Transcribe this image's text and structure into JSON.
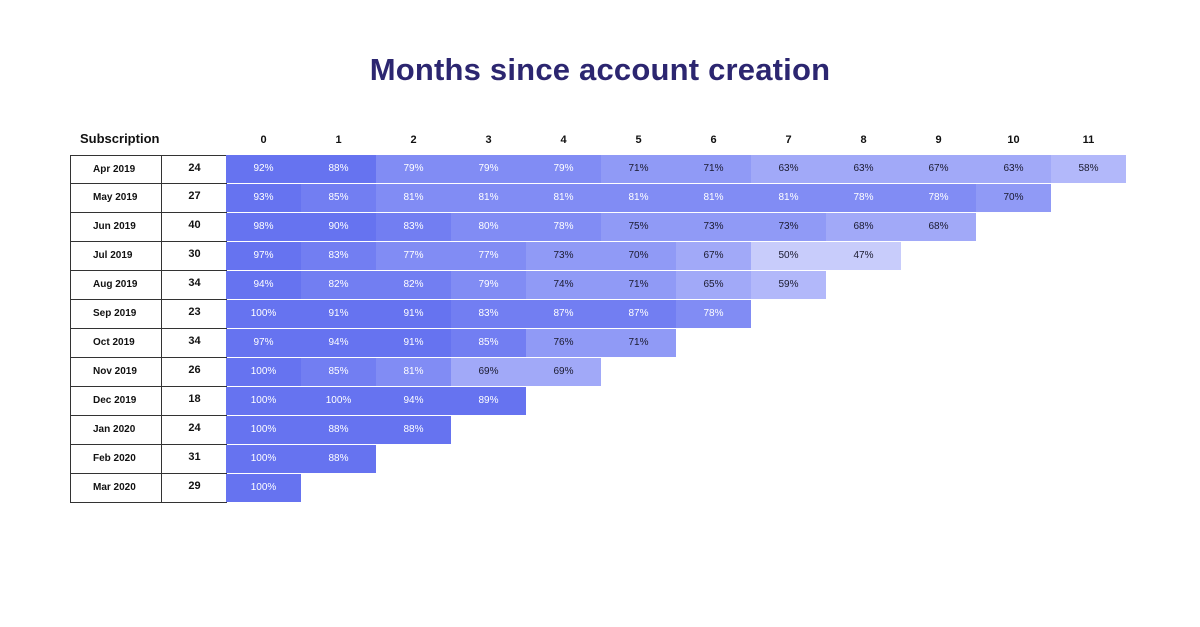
{
  "title": "Months since account creation",
  "row_header": "Subscription",
  "chart_data": {
    "type": "heatmap",
    "title": "Months since account creation",
    "columns": [
      "0",
      "1",
      "2",
      "3",
      "4",
      "5",
      "6",
      "7",
      "8",
      "9",
      "10",
      "11"
    ],
    "rows": [
      {
        "label": "Apr 2019",
        "count": "24",
        "values": [
          "92%",
          "88%",
          "79%",
          "79%",
          "79%",
          "71%",
          "71%",
          "63%",
          "63%",
          "67%",
          "63%",
          "58%"
        ]
      },
      {
        "label": "May 2019",
        "count": "27",
        "values": [
          "93%",
          "85%",
          "81%",
          "81%",
          "81%",
          "81%",
          "81%",
          "81%",
          "78%",
          "78%",
          "70%"
        ]
      },
      {
        "label": "Jun 2019",
        "count": "40",
        "values": [
          "98%",
          "90%",
          "83%",
          "80%",
          "78%",
          "75%",
          "73%",
          "73%",
          "68%",
          "68%"
        ]
      },
      {
        "label": "Jul 2019",
        "count": "30",
        "values": [
          "97%",
          "83%",
          "77%",
          "77%",
          "73%",
          "70%",
          "67%",
          "50%",
          "47%"
        ]
      },
      {
        "label": "Aug 2019",
        "count": "34",
        "values": [
          "94%",
          "82%",
          "82%",
          "79%",
          "74%",
          "71%",
          "65%",
          "59%"
        ]
      },
      {
        "label": "Sep 2019",
        "count": "23",
        "values": [
          "100%",
          "91%",
          "91%",
          "83%",
          "87%",
          "87%",
          "78%"
        ]
      },
      {
        "label": "Oct 2019",
        "count": "34",
        "values": [
          "97%",
          "94%",
          "91%",
          "85%",
          "76%",
          "71%"
        ]
      },
      {
        "label": "Nov 2019",
        "count": "26",
        "values": [
          "100%",
          "85%",
          "81%",
          "69%",
          "69%"
        ]
      },
      {
        "label": "Dec 2019",
        "count": "18",
        "values": [
          "100%",
          "100%",
          "94%",
          "89%"
        ]
      },
      {
        "label": "Jan 2020",
        "count": "24",
        "values": [
          "100%",
          "88%",
          "88%"
        ]
      },
      {
        "label": "Feb 2020",
        "count": "31",
        "values": [
          "100%",
          "88%"
        ]
      },
      {
        "label": "Mar 2020",
        "count": "29",
        "values": [
          "100%"
        ]
      }
    ],
    "colors": [
      "#c8ccfb",
      "#b2b8fa",
      "#a1a9f8",
      "#909af6",
      "#818cf4",
      "#727ef2",
      "#6673f0"
    ]
  }
}
